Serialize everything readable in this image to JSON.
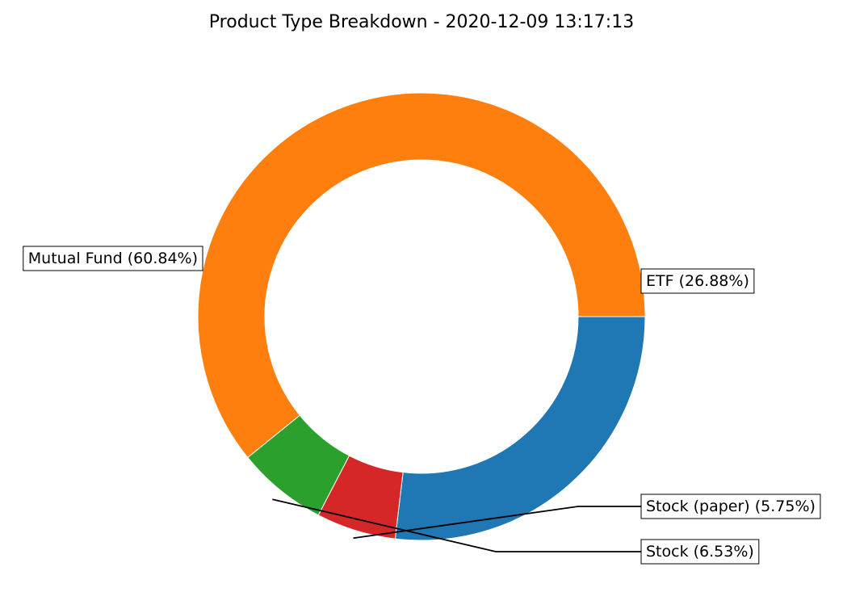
{
  "chart_data": {
    "type": "pie",
    "title": "Product Type Breakdown - 2020-12-09 13:17:13",
    "series": [
      {
        "name": "ETF",
        "value": 26.88,
        "label": "ETF (26.88%)",
        "color": "#1f77b4"
      },
      {
        "name": "Stock (paper)",
        "value": 5.75,
        "label": "Stock (paper) (5.75%)",
        "color": "#d62728"
      },
      {
        "name": "Stock",
        "value": 6.53,
        "label": "Stock (6.53%)",
        "color": "#2ca02c"
      },
      {
        "name": "Mutual Fund",
        "value": 60.84,
        "label": "Mutual Fund (60.84%)",
        "color": "#ff7f0e"
      }
    ],
    "donut": true,
    "legend": "none",
    "grid": false
  }
}
